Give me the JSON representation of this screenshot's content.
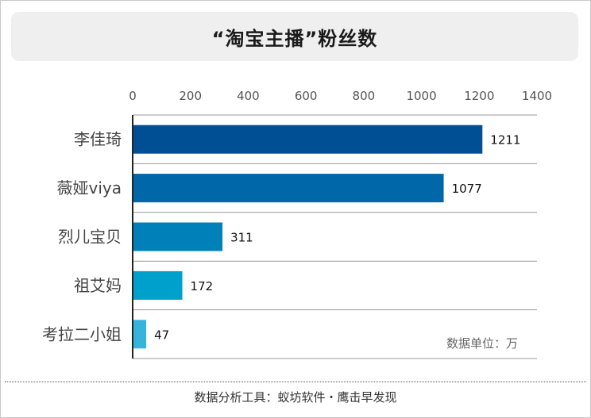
{
  "title": "“淘宝主播”粉丝数",
  "footer": "数据分析工具：蚁坊软件・鹰击早发现",
  "chart_data": {
    "type": "bar",
    "orientation": "horizontal",
    "categories": [
      "李佳琦",
      "薇娅viya",
      "烈儿宝贝",
      "祖艾妈",
      "考拉二小姐"
    ],
    "values": [
      1211,
      1077,
      311,
      172,
      47
    ],
    "value_labels": [
      "1211",
      "1077",
      "311",
      "172",
      "47"
    ],
    "xlim": [
      0,
      1400
    ],
    "xticks": [
      0,
      200,
      400,
      600,
      800,
      1000,
      1200,
      1400
    ],
    "xtick_labels": [
      "0",
      "200",
      "400",
      "600",
      "800",
      "1000",
      "1200",
      "1400"
    ],
    "axis_position": "top",
    "unit_note": "数据单位：万",
    "grid": "horizontal-separators",
    "colors": [
      "#004f94",
      "#0068a8",
      "#0080b8",
      "#00a0cc",
      "#38b4dc"
    ]
  }
}
